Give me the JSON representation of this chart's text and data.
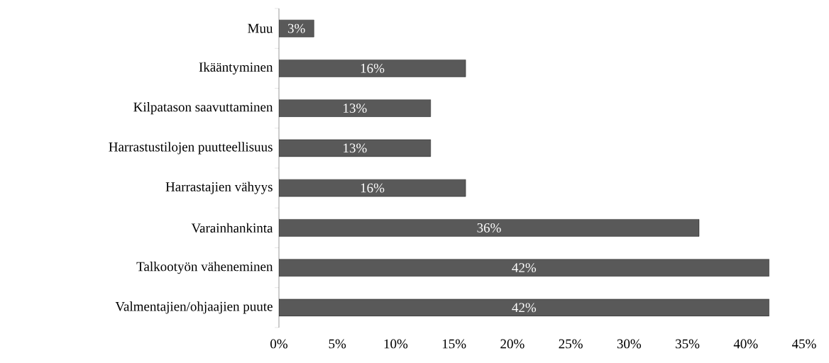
{
  "chart_data": {
    "type": "bar",
    "orientation": "horizontal",
    "categories": [
      "Muu",
      "Ikääntyminen",
      "Kilpatason saavuttaminen",
      "Harrastustilojen puutteellisuus",
      "Harrastajien vähyys",
      "Varainhankinta",
      "Talkootyön väheneminen",
      "Valmentajien/ohjaajien puute"
    ],
    "values": [
      3,
      16,
      13,
      13,
      16,
      36,
      42,
      42
    ],
    "value_labels": [
      "3%",
      "16%",
      "13%",
      "13%",
      "16%",
      "36%",
      "42%",
      "42%"
    ],
    "color": "#595959",
    "xlim": [
      0,
      45
    ],
    "xticks": [
      {
        "value": 0,
        "label": "0%"
      },
      {
        "value": 5,
        "label": "5%"
      },
      {
        "value": 10,
        "label": "10%"
      },
      {
        "value": 15,
        "label": "15%"
      },
      {
        "value": 20,
        "label": "20%"
      },
      {
        "value": 25,
        "label": "25%"
      },
      {
        "value": 30,
        "label": "30%"
      },
      {
        "value": 35,
        "label": "35%"
      },
      {
        "value": 40,
        "label": "40%"
      },
      {
        "value": 45,
        "label": "45%"
      }
    ]
  }
}
